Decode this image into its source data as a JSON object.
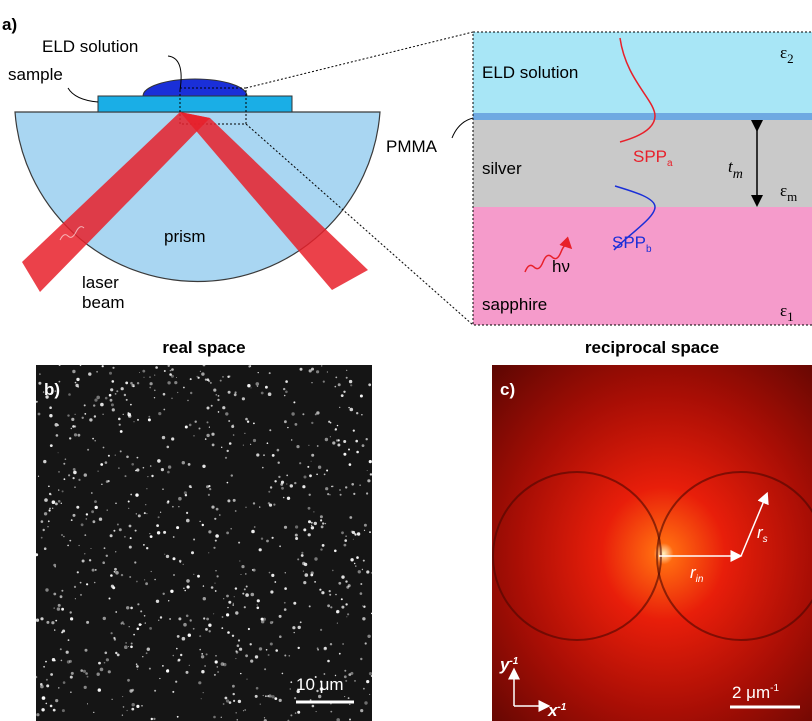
{
  "panel_a": {
    "label": "a)",
    "eld_solution": "ELD solution",
    "sample": "sample",
    "pmma": "PMMA",
    "prism": "prism",
    "laser_beam": [
      "laser",
      "beam"
    ],
    "zoom": {
      "eld_solution": "ELD solution",
      "silver": "silver",
      "sapphire": "sapphire",
      "spp_a": {
        "text": "SPP",
        "sub": "a"
      },
      "spp_b": {
        "text": "SPP",
        "sub": "b"
      },
      "thickness": {
        "text": "t",
        "sub": "m"
      },
      "photon": "hν",
      "eps_2": {
        "text": "ε",
        "sub": "2"
      },
      "eps_m": {
        "text": "ε",
        "sub": "m"
      },
      "eps_1": {
        "text": "ε",
        "sub": "1"
      }
    }
  },
  "panel_b": {
    "label": "b)",
    "title": "real space",
    "scale": "10 μm"
  },
  "panel_c": {
    "label": "c)",
    "title": "reciprocal space",
    "scale": {
      "text": "2 μm",
      "sup": "-1"
    },
    "r_in": {
      "text": "r",
      "sub": "in"
    },
    "r_s": {
      "text": "r",
      "sub": "s"
    },
    "axis_y": {
      "text": "y",
      "sup": "-1"
    },
    "axis_x": {
      "text": "x",
      "sup": "-1"
    }
  }
}
